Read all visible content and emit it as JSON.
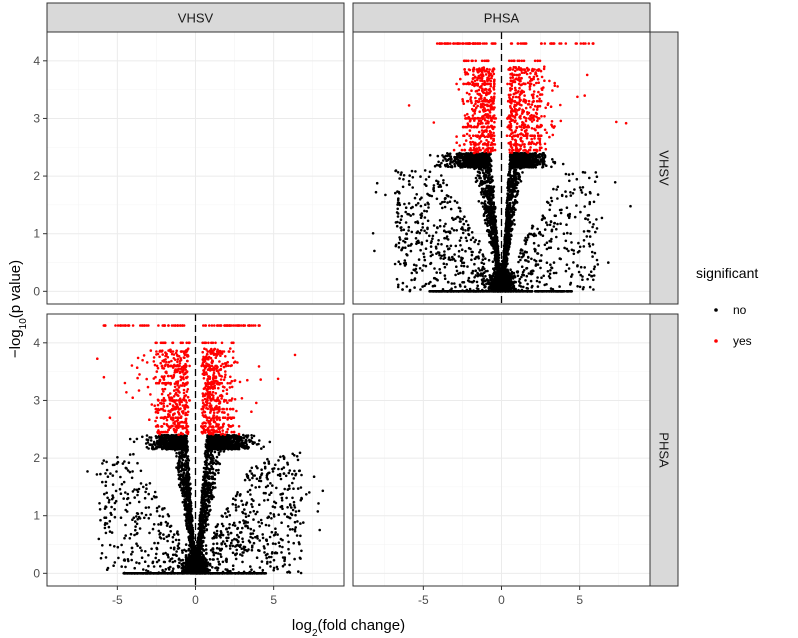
{
  "chart_data": {
    "type": "scatter",
    "facets": {
      "col_labels": [
        "VHSV",
        "PHSA"
      ],
      "row_labels": [
        "VHSV",
        "PHSA"
      ]
    },
    "xlabel": {
      "prefix": "log",
      "sub": "2",
      "suffix": "(fold change)"
    },
    "ylabel": {
      "prefix": "−log",
      "sub": "10",
      "suffix": "(p value)"
    },
    "xlim": [
      -9.5,
      9.5
    ],
    "ylim": [
      -0.22,
      4.5
    ],
    "x_ticks": [
      -5,
      0,
      5
    ],
    "y_ticks": [
      0,
      1,
      2,
      3,
      4
    ],
    "x_tick_labels": [
      "-5",
      "0",
      "5"
    ],
    "y_tick_labels": [
      "0",
      "1",
      "2",
      "3",
      "4"
    ],
    "reference_line": {
      "x": 0,
      "style": "dashed"
    },
    "significance_threshold_y": 2.4,
    "max_y": 4.3,
    "grid": true,
    "legend": {
      "title": "significant",
      "position": "right",
      "entries": [
        {
          "label": "no",
          "color": "#000000"
        },
        {
          "label": "yes",
          "color": "#ff0000"
        }
      ]
    },
    "panels": [
      {
        "row": "VHSV",
        "col": "VHSV",
        "has_points": false
      },
      {
        "row": "VHSV",
        "col": "PHSA",
        "has_points": true
      },
      {
        "row": "PHSA",
        "col": "VHSV",
        "has_points": true
      },
      {
        "row": "PHSA",
        "col": "PHSA",
        "has_points": false
      }
    ],
    "series": [
      {
        "name": "no",
        "color": "#000000"
      },
      {
        "name": "yes",
        "color": "#ff0000"
      }
    ]
  }
}
